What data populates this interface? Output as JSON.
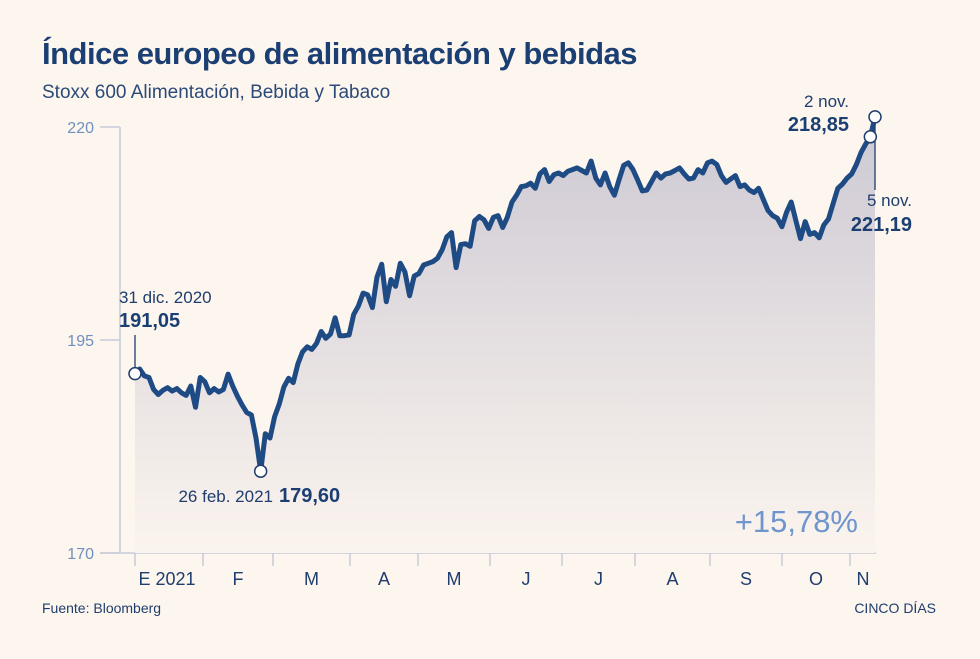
{
  "header": {
    "title": "Índice europeo de alimentación y bebidas",
    "subtitle": "Stoxx 600 Alimentación, Bebida y Tabaco"
  },
  "footer": {
    "source": "Fuente: Bloomberg",
    "brand": "CINCO DÍAS"
  },
  "chart_data": {
    "type": "line",
    "ylim": [
      170,
      220
    ],
    "yticks": [
      170,
      195,
      220
    ],
    "ytick_labels": [
      "170",
      "195",
      "220"
    ],
    "x_tick_labels": [
      "E 2021",
      "F",
      "M",
      "A",
      "M",
      "J",
      "J",
      "A",
      "S",
      "O",
      "N"
    ],
    "grid": false,
    "series": [
      {
        "values": [
          191.05,
          191.6,
          190.8,
          190.6,
          189.2,
          188.6,
          189.1,
          189.4,
          189.0,
          189.3,
          188.8,
          188.5,
          189.6,
          187.1,
          190.6,
          190.1,
          188.8,
          189.3,
          188.9,
          189.2,
          191.0,
          189.6,
          188.4,
          187.4,
          186.5,
          186.2,
          183.5,
          179.6,
          184.0,
          183.5,
          186.0,
          187.5,
          189.5,
          190.5,
          190.0,
          192.2,
          193.6,
          194.2,
          193.9,
          194.6,
          196.0,
          195.2,
          195.7,
          197.6,
          195.5,
          195.5,
          195.6,
          198.0,
          199.0,
          200.5,
          200.3,
          198.8,
          202.4,
          203.9,
          199.5,
          202.1,
          201.3,
          204.0,
          203.0,
          200.2,
          202.5,
          202.8,
          203.8,
          204.0,
          204.2,
          204.6,
          205.6,
          207.1,
          207.6,
          203.5,
          206.2,
          206.3,
          206.0,
          209.0,
          209.5,
          209.1,
          208.1,
          209.4,
          209.6,
          208.2,
          209.4,
          211.2,
          212.0,
          213.0,
          213.1,
          213.4,
          212.8,
          214.5,
          215.0,
          213.6,
          214.4,
          214.6,
          214.3,
          214.8,
          215.0,
          215.2,
          214.9,
          214.6,
          216.0,
          214.0,
          213.2,
          214.6,
          213.0,
          212.0,
          213.8,
          215.5,
          215.8,
          215.0,
          213.8,
          212.5,
          212.6,
          213.6,
          214.6,
          214.0,
          214.5,
          214.6,
          214.9,
          215.2,
          214.5,
          213.9,
          214.0,
          215.0,
          214.6,
          215.8,
          216.0,
          215.6,
          214.3,
          213.5,
          213.9,
          214.3,
          213.0,
          213.2,
          212.6,
          212.3,
          212.8,
          211.5,
          210.2,
          209.6,
          209.3,
          208.3,
          210.0,
          211.2,
          209.0,
          206.9,
          208.9,
          207.4,
          207.6,
          207.0,
          208.5,
          209.2,
          211.0,
          212.8,
          213.3,
          214.0,
          214.5,
          215.6,
          217.0,
          218.0,
          218.85,
          221.19
        ]
      }
    ],
    "annotations": [
      {
        "date": "31 dic. 2020",
        "value": "191,05"
      },
      {
        "date": "26 feb. 2021",
        "value": "179,60"
      },
      {
        "date": "2 nov.",
        "value": "218,85"
      },
      {
        "date": "5 nov.",
        "value": "221,19"
      }
    ],
    "change_label": "+15,78%"
  }
}
